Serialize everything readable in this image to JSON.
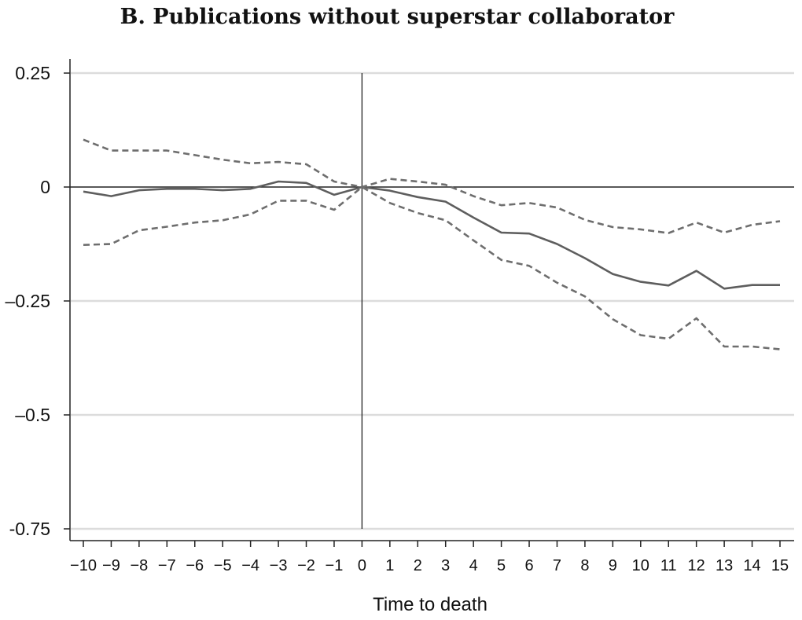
{
  "chart_data": {
    "type": "line",
    "title": "B. Publications without superstar collaborator",
    "xlabel": "Time to death",
    "ylabel": "",
    "x": [
      -10,
      -9,
      -8,
      -7,
      -6,
      -5,
      -4,
      -3,
      -2,
      -1,
      0,
      1,
      2,
      3,
      4,
      5,
      6,
      7,
      8,
      9,
      10,
      11,
      12,
      13,
      14,
      15
    ],
    "x_tick_labels": [
      "−10",
      "−9",
      "−8",
      "−7",
      "−6",
      "−5",
      "−4",
      "−3",
      "−2",
      "−1",
      "0",
      "1",
      "2",
      "3",
      "4",
      "5",
      "6",
      "7",
      "8",
      "9",
      "10",
      "11",
      "12",
      "13",
      "14",
      "15"
    ],
    "y_ticks": [
      0.25,
      0,
      -0.25,
      -0.5,
      -0.75
    ],
    "y_tick_labels": [
      "0.25",
      "0",
      "–0.25",
      "–0.5",
      "-0.75"
    ],
    "xlim": [
      -10.5,
      15.5
    ],
    "ylim": [
      -0.78,
      0.28
    ],
    "grid": "horizontal",
    "reference_lines": {
      "horizontal": 0,
      "vertical": 0
    },
    "series": [
      {
        "style": "solid",
        "color": "#5e5e5e",
        "values": [
          -0.01,
          -0.02,
          -0.007,
          -0.004,
          -0.004,
          -0.007,
          -0.004,
          0.012,
          0.009,
          -0.017,
          0,
          -0.008,
          -0.022,
          -0.032,
          -0.067,
          -0.1,
          -0.102,
          -0.125,
          -0.156,
          -0.191,
          -0.208,
          -0.216,
          -0.184,
          -0.223,
          -0.215,
          -0.215
        ]
      },
      {
        "style": "dashed",
        "color": "#6e6e6e",
        "values": [
          0.104,
          0.08,
          0.08,
          0.08,
          0.07,
          0.06,
          0.052,
          0.055,
          0.05,
          0.012,
          0,
          0.018,
          0.012,
          0.005,
          -0.02,
          -0.04,
          -0.035,
          -0.045,
          -0.072,
          -0.088,
          -0.093,
          -0.101,
          -0.078,
          -0.1,
          -0.083,
          -0.075
        ]
      },
      {
        "style": "dashed",
        "color": "#6e6e6e",
        "values": [
          -0.127,
          -0.125,
          -0.095,
          -0.087,
          -0.078,
          -0.073,
          -0.06,
          -0.03,
          -0.03,
          -0.05,
          0,
          -0.035,
          -0.057,
          -0.073,
          -0.117,
          -0.16,
          -0.173,
          -0.21,
          -0.24,
          -0.29,
          -0.325,
          -0.333,
          -0.288,
          -0.35,
          -0.35,
          -0.356
        ]
      }
    ]
  }
}
